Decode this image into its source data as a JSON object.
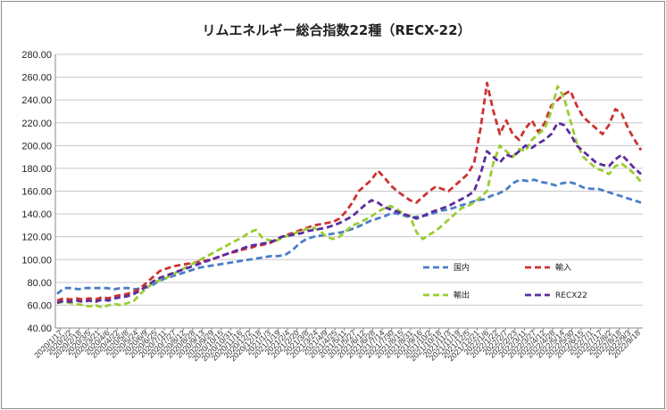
{
  "chart_data": {
    "type": "line",
    "title": "リムエネルギー総合指数22種（RECX-22）",
    "xlabel": "",
    "ylabel": "",
    "ylim": [
      40,
      280
    ],
    "yticks": [
      "40.00",
      "60.00",
      "80.00",
      "100.00",
      "120.00",
      "140.00",
      "160.00",
      "180.00",
      "200.00",
      "220.00",
      "240.00",
      "260.00",
      "280.00"
    ],
    "grid": "horizontal",
    "legend_position": "bottom-right, inside plot",
    "x_range": [
      "2020/1/17",
      "2022/9/18"
    ],
    "x_tick_labels": [
      "2020/1/17",
      "2020/2/2",
      "2020/2/18",
      "2020/3/5",
      "2020/3/21",
      "2020/4/6",
      "2020/4/22",
      "2020/5/8",
      "2020/5/24",
      "2020/6/9",
      "2020/6/25",
      "2020/7/11",
      "2020/7/27",
      "2020/8/12",
      "2020/8/28",
      "2020/9/13",
      "2020/9/29",
      "2020/10/15",
      "2020/10/31",
      "2020/11/16",
      "2020/12/2",
      "2020/12/18",
      "2021/1/3",
      "2021/1/19",
      "2021/2/4",
      "2021/2/20",
      "2021/3/8",
      "2021/3/24",
      "2021/4/9",
      "2021/4/25",
      "2021/5/11",
      "2021/5/27",
      "2021/6/12",
      "2021/6/28",
      "2021/7/14",
      "2021/7/30",
      "2021/8/15",
      "2021/8/31",
      "2021/9/16",
      "2021/10/2",
      "2021/10/18",
      "2021/11/3",
      "2021/11/19",
      "2021/12/5",
      "2021/12/21",
      "2022/1/6",
      "2022/1/22",
      "2022/2/7",
      "2022/2/23",
      "2022/3/11",
      "2022/3/27",
      "2022/4/12",
      "2022/4/28",
      "2022/5/14",
      "2022/5/30",
      "2022/6/15",
      "2022/7/1",
      "2022/7/17",
      "2022/8/2",
      "2022/8/18",
      "2022/9/3",
      "2022/9/18"
    ],
    "series": [
      {
        "name": "国内",
        "color": "#4a7dc8",
        "values": [
          70,
          75,
          75,
          74,
          75,
          75,
          75,
          75,
          74,
          75,
          75,
          74,
          75,
          76,
          80,
          83,
          85,
          87,
          89,
          91,
          93,
          94,
          95,
          96,
          97,
          98,
          99,
          100,
          101,
          102,
          103,
          103,
          104,
          108,
          114,
          118,
          120,
          121,
          122,
          123,
          124,
          126,
          128,
          131,
          134,
          136,
          138,
          141,
          140,
          138,
          137,
          138,
          139,
          141,
          143,
          144,
          146,
          148,
          150,
          152,
          153,
          156,
          158,
          161,
          167,
          170,
          169,
          170,
          168,
          167,
          165,
          167,
          168,
          166,
          163,
          162,
          162,
          160,
          158,
          156,
          154,
          152,
          150
        ]
      },
      {
        "name": "輸入",
        "color": "#cc3333",
        "values": [
          64,
          66,
          65,
          66,
          65,
          66,
          65,
          67,
          66,
          68,
          69,
          70,
          72,
          75,
          80,
          85,
          90,
          92,
          94,
          95,
          96,
          97,
          98,
          99,
          100,
          102,
          104,
          106,
          107,
          109,
          110,
          112,
          113,
          114,
          117,
          120,
          122,
          124,
          126,
          128,
          130,
          131,
          132,
          133,
          136,
          142,
          150,
          160,
          165,
          170,
          178,
          172,
          165,
          160,
          156,
          152,
          150,
          155,
          160,
          164,
          162,
          160,
          165,
          170,
          175,
          185,
          215,
          255,
          230,
          210,
          222,
          210,
          205,
          215,
          222,
          212,
          220,
          235,
          240,
          245,
          248,
          235,
          225,
          220,
          215,
          210,
          218,
          232,
          228,
          215,
          205,
          196
        ]
      },
      {
        "name": "輸出",
        "color": "#9acd32",
        "values": [
          62,
          63,
          62,
          61,
          60,
          59,
          60,
          58,
          60,
          61,
          60,
          62,
          64,
          70,
          75,
          80,
          82,
          84,
          87,
          90,
          93,
          96,
          99,
          102,
          105,
          108,
          111,
          114,
          117,
          120,
          124,
          126,
          119,
          117,
          116,
          119,
          121,
          123,
          125,
          127,
          128,
          125,
          120,
          118,
          120,
          125,
          130,
          132,
          135,
          138,
          142,
          145,
          147,
          144,
          140,
          138,
          124,
          118,
          122,
          125,
          130,
          135,
          140,
          145,
          147,
          150,
          155,
          160,
          185,
          200,
          195,
          190,
          197,
          195,
          205,
          210,
          215,
          230,
          252,
          242,
          222,
          202,
          190,
          185,
          180,
          178,
          175,
          182,
          184,
          180,
          175,
          168
        ]
      },
      {
        "name": "RECX22",
        "color": "#5b2d9e",
        "values": [
          62,
          64,
          63,
          64,
          63,
          64,
          63,
          65,
          64,
          66,
          67,
          68,
          70,
          73,
          77,
          81,
          84,
          86,
          88,
          90,
          92,
          94,
          96,
          98,
          100,
          102,
          104,
          106,
          108,
          110,
          112,
          113,
          114,
          115,
          117,
          120,
          121,
          122,
          123,
          125,
          126,
          127,
          128,
          130,
          132,
          135,
          138,
          143,
          148,
          152,
          150,
          146,
          144,
          142,
          140,
          138,
          136,
          138,
          141,
          143,
          145,
          147,
          150,
          153,
          156,
          160,
          175,
          195,
          190,
          185,
          192,
          190,
          195,
          200,
          198,
          202,
          205,
          210,
          220,
          218,
          210,
          200,
          195,
          190,
          185,
          183,
          182,
          188,
          192,
          186,
          180,
          175
        ]
      }
    ]
  }
}
